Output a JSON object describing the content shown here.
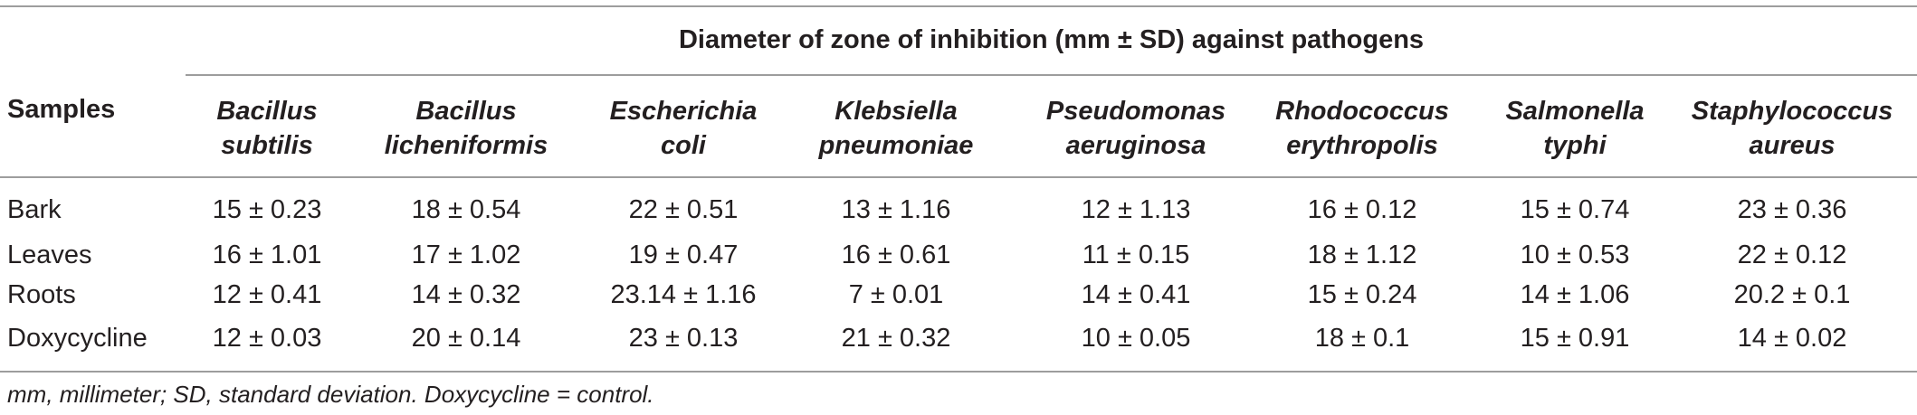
{
  "table": {
    "spanner_header": "Diameter of zone of inhibition (mm ± SD) against pathogens",
    "samples_header": "Samples",
    "columns": [
      {
        "line1": "Bacillus",
        "line2": "subtilis"
      },
      {
        "line1": "Bacillus",
        "line2": "licheniformis"
      },
      {
        "line1": "Escherichia",
        "line2": "coli"
      },
      {
        "line1": "Klebsiella",
        "line2": "pneumoniae"
      },
      {
        "line1": "Pseudomonas",
        "line2": "aeruginosa"
      },
      {
        "line1": "Rhodococcus",
        "line2": "erythropolis"
      },
      {
        "line1": "Salmonella",
        "line2": "typhi"
      },
      {
        "line1": "Staphylococcus",
        "line2": "aureus"
      }
    ],
    "rows": [
      {
        "sample": "Bark",
        "values": [
          "15 ± 0.23",
          "18 ± 0.54",
          "22 ± 0.51",
          "13 ± 1.16",
          "12 ± 1.13",
          "16 ± 0.12",
          "15 ± 0.74",
          "23 ± 0.36"
        ]
      },
      {
        "sample": "Leaves",
        "values": [
          "16 ± 1.01",
          "17 ± 1.02",
          "19 ± 0.47",
          "16 ± 0.61",
          "11 ± 0.15",
          "18 ± 1.12",
          "10 ± 0.53",
          "22 ± 0.12"
        ]
      },
      {
        "sample": "Roots",
        "values": [
          "12 ± 0.41",
          "14 ± 0.32",
          "23.14 ± 1.16",
          "7 ± 0.01",
          "14 ± 0.41",
          "15 ± 0.24",
          "14 ± 1.06",
          "20.2 ± 0.1"
        ]
      },
      {
        "sample": "Doxycycline",
        "values": [
          "12 ± 0.03",
          "20 ± 0.14",
          "23 ± 0.13",
          "21 ± 0.32",
          "10 ± 0.05",
          "18 ± 0.1",
          "15 ± 0.91",
          "14 ± 0.02"
        ]
      }
    ],
    "footnote": "mm, millimeter; SD, standard deviation. Doxycycline = control."
  }
}
